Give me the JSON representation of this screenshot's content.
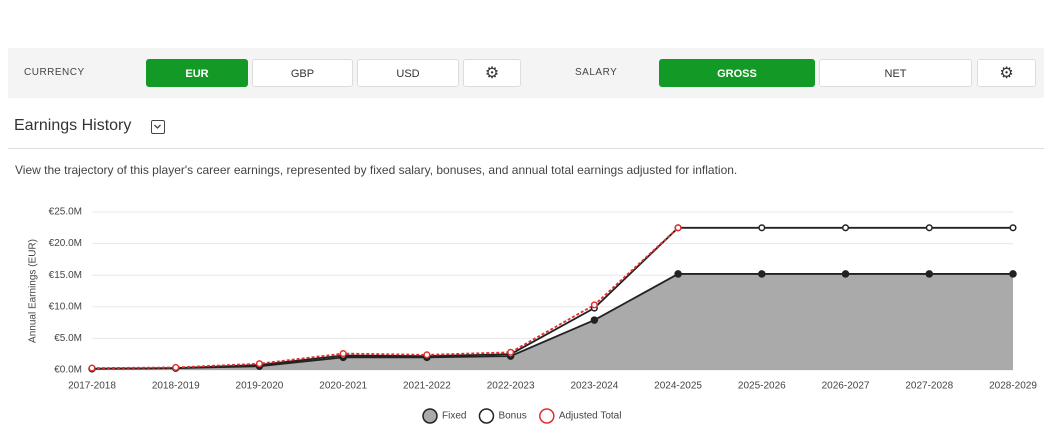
{
  "toolbar": {
    "currency_label": "CURRENCY",
    "currency_options": [
      "EUR",
      "GBP",
      "USD"
    ],
    "salary_label": "SALARY",
    "salary_options": [
      "GROSS",
      "NET"
    ]
  },
  "section": {
    "title": "Earnings History",
    "description": "View the trajectory of this player's career earnings, represented by fixed salary, bonuses, and annual total earnings adjusted for inflation."
  },
  "chart_data": {
    "type": "line",
    "ylabel": "Annual Earnings (EUR)",
    "categories": [
      "2017-2018",
      "2018-2019",
      "2019-2020",
      "2020-2021",
      "2021-2022",
      "2022-2023",
      "2023-2024",
      "2024-2025",
      "2025-2026",
      "2026-2027",
      "2027-2028",
      "2028-2029"
    ],
    "series": [
      {
        "name": "Fixed",
        "color": "#222222",
        "area_color": "#aaaaaa",
        "marker": "filled",
        "values": [
          0.2,
          0.3,
          0.6,
          2.0,
          2.0,
          2.2,
          7.9,
          15.2,
          15.2,
          15.2,
          15.2,
          15.2
        ]
      },
      {
        "name": "Bonus",
        "color": "#222222",
        "marker": "open",
        "values": [
          0.2,
          0.3,
          0.8,
          2.3,
          2.2,
          2.5,
          9.8,
          22.5,
          22.5,
          22.5,
          22.5,
          22.5
        ]
      },
      {
        "name": "Adjusted Total",
        "color": "#e03030",
        "marker": "open",
        "values": [
          0.3,
          0.4,
          1.0,
          2.6,
          2.4,
          2.8,
          10.3,
          22.5,
          null,
          null,
          null,
          null
        ]
      }
    ],
    "ylim": [
      0,
      25
    ],
    "yticks": [
      {
        "value": 0,
        "label": "€0.0M"
      },
      {
        "value": 5,
        "label": "€5.0M"
      },
      {
        "value": 10,
        "label": "€10.0M"
      },
      {
        "value": 15,
        "label": "€15.0M"
      },
      {
        "value": 20,
        "label": "€20.0M"
      },
      {
        "value": 25,
        "label": "€25.0M"
      }
    ],
    "grid": true
  }
}
